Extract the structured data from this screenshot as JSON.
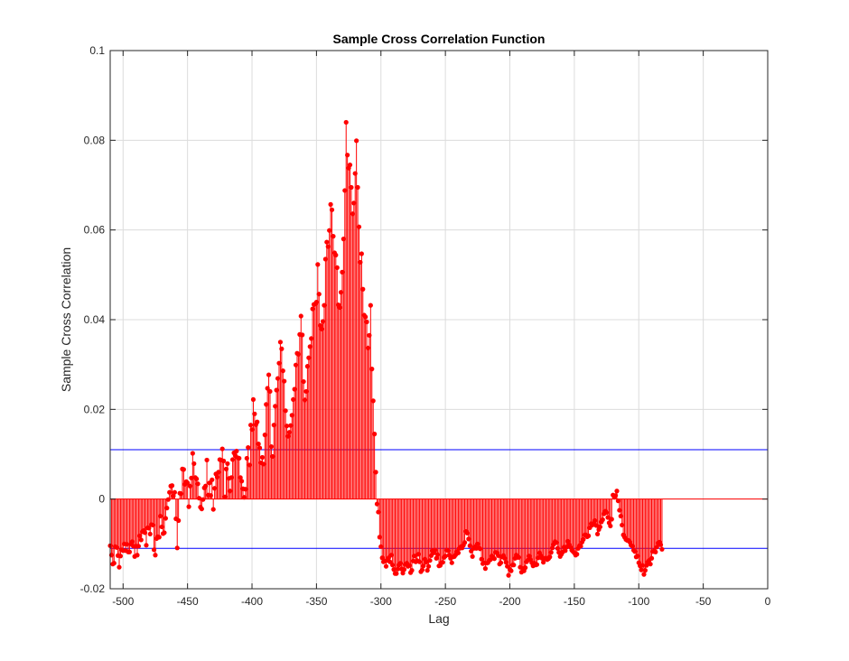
{
  "chart_data": {
    "type": "stem",
    "title": "Sample Cross Correlation Function",
    "xlabel": "Lag",
    "ylabel": "Sample Cross Correlation",
    "xlim": [
      -510,
      0
    ],
    "ylim": [
      -0.02,
      0.1
    ],
    "xticks": [
      -500,
      -450,
      -400,
      -350,
      -300,
      -250,
      -200,
      -150,
      -100,
      -50,
      0
    ],
    "xtick_labels": [
      "-500",
      "-450",
      "-400",
      "-350",
      "-300",
      "-250",
      "-200",
      "-150",
      "-100",
      "-50",
      "0"
    ],
    "yticks": [
      -0.02,
      0,
      0.02,
      0.04,
      0.06,
      0.08,
      0.1
    ],
    "ytick_labels": [
      "-0.02",
      "0",
      "0.02",
      "0.04",
      "0.06",
      "0.08",
      "0.1"
    ],
    "grid": true,
    "confidence_bounds": [
      0.011,
      -0.011
    ],
    "colors": {
      "stem": "#ff0000",
      "bounds": "#0000ff",
      "grid": "#dcdcdc",
      "axis": "#262626"
    },
    "lag_start": -510,
    "values": [
      -0.0104,
      -0.0125,
      -0.0145,
      -0.0143,
      -0.0106,
      -0.0108,
      -0.0126,
      -0.0152,
      -0.0127,
      -0.0113,
      -0.0115,
      -0.01,
      -0.0115,
      -0.0101,
      -0.0118,
      -0.0118,
      -0.0101,
      -0.0095,
      -0.0105,
      -0.0128,
      -0.0105,
      -0.0125,
      -0.0105,
      -0.0082,
      -0.0091,
      -0.0073,
      -0.007,
      -0.0075,
      -0.0103,
      -0.0064,
      -0.0065,
      -0.0078,
      -0.0057,
      -0.0058,
      -0.0113,
      -0.0125,
      -0.0088,
      -0.0084,
      -0.0085,
      -0.0038,
      -0.0062,
      -0.0077,
      -0.0075,
      -0.0043,
      -0.002,
      -0.0001,
      0.0015,
      0.0029,
      0.003,
      0.0007,
      0.0015,
      -0.0044,
      -0.0109,
      -0.0048,
      0.0013,
      0.0012,
      0.0067,
      0.0066,
      0.0033,
      0.0039,
      0.0036,
      -0.0017,
      0.0029,
      0.0047,
      0.0102,
      0.0079,
      0.0048,
      0.0045,
      0.0034,
      0.0002,
      -0.0018,
      -0.0022,
      -0.0001,
      0.0025,
      0.0029,
      0.0087,
      0.0009,
      0.0036,
      0.0008,
      0.0043,
      -0.0023,
      0.0024,
      0.0056,
      0.0049,
      0.006,
      0.0088,
      0.0087,
      0.0112,
      0.0085,
      0.0005,
      0.0067,
      0.0079,
      0.0046,
      0.0018,
      0.0048,
      0.0088,
      0.0103,
      0.0097,
      0.0107,
      0.0092,
      0.0091,
      0.0048,
      0.004,
      0.0023,
      0.0004,
      0.0022,
      0.0091,
      0.0115,
      0.0076,
      0.0165,
      0.0155,
      0.0222,
      0.019,
      0.0166,
      0.0172,
      0.0123,
      0.0114,
      0.0081,
      0.0093,
      0.0078,
      0.0143,
      0.0211,
      0.0247,
      0.0277,
      0.024,
      0.0117,
      0.0095,
      0.0165,
      0.0207,
      0.0243,
      0.0269,
      0.0303,
      0.035,
      0.0335,
      0.0286,
      0.0263,
      0.0197,
      0.0163,
      0.014,
      0.0149,
      0.0164,
      0.0187,
      0.0222,
      0.0245,
      0.0299,
      0.0325,
      0.0323,
      0.0367,
      0.0408,
      0.0366,
      0.0262,
      0.0221,
      0.024,
      0.0296,
      0.0315,
      0.034,
      0.0358,
      0.0424,
      0.0434,
      0.0435,
      0.0439,
      0.0523,
      0.0457,
      0.0387,
      0.0379,
      0.0396,
      0.0432,
      0.0535,
      0.0573,
      0.0563,
      0.0599,
      0.0657,
      0.0645,
      0.0586,
      0.0549,
      0.0544,
      0.0516,
      0.0433,
      0.0427,
      0.0461,
      0.0506,
      0.058,
      0.0688,
      0.084,
      0.0767,
      0.0738,
      0.0745,
      0.0695,
      0.0636,
      0.066,
      0.0726,
      0.0799,
      0.0695,
      0.0607,
      0.0528,
      0.0547,
      0.0468,
      0.041,
      0.0406,
      0.0395,
      0.0337,
      0.0365,
      0.0432,
      0.029,
      0.0219,
      0.0145,
      0.006,
      -0.0011,
      -0.0029,
      -0.0085,
      -0.0106,
      -0.0131,
      -0.014,
      -0.0138,
      -0.015,
      -0.0137,
      -0.0131,
      -0.014,
      -0.0125,
      -0.0147,
      -0.0157,
      -0.0166,
      -0.0166,
      -0.0156,
      -0.0147,
      -0.0143,
      -0.0156,
      -0.0165,
      -0.0157,
      -0.0146,
      -0.0143,
      -0.015,
      -0.0148,
      -0.0164,
      -0.0159,
      -0.0138,
      -0.0127,
      -0.014,
      -0.0137,
      -0.0123,
      -0.014,
      -0.0162,
      -0.0158,
      -0.0149,
      -0.0134,
      -0.0141,
      -0.0159,
      -0.015,
      -0.0137,
      -0.0126,
      -0.0115,
      -0.012,
      -0.0114,
      -0.0132,
      -0.0124,
      -0.0149,
      -0.0148,
      -0.0142,
      -0.0141,
      -0.013,
      -0.0127,
      -0.0114,
      -0.0115,
      -0.0125,
      -0.0132,
      -0.0142,
      -0.0129,
      -0.0128,
      -0.0124,
      -0.0117,
      -0.012,
      -0.011,
      -0.0106,
      -0.0109,
      -0.0103,
      -0.0097,
      -0.0072,
      -0.0076,
      -0.0089,
      -0.0104,
      -0.0116,
      -0.0128,
      -0.011,
      -0.0106,
      -0.011,
      -0.01,
      -0.0109,
      -0.0111,
      -0.0134,
      -0.0144,
      -0.0142,
      -0.0155,
      -0.0143,
      -0.0142,
      -0.0137,
      -0.0135,
      -0.0127,
      -0.0129,
      -0.0133,
      -0.0119,
      -0.012,
      -0.0126,
      -0.0145,
      -0.0142,
      -0.0129,
      -0.0126,
      -0.0132,
      -0.0141,
      -0.015,
      -0.017,
      -0.0157,
      -0.016,
      -0.0147,
      -0.0147,
      -0.0132,
      -0.0125,
      -0.013,
      -0.013,
      -0.0152,
      -0.0163,
      -0.0155,
      -0.016,
      -0.0153,
      -0.014,
      -0.0136,
      -0.0127,
      -0.0135,
      -0.0142,
      -0.0149,
      -0.0143,
      -0.0147,
      -0.0146,
      -0.0131,
      -0.012,
      -0.0126,
      -0.0132,
      -0.0141,
      -0.0132,
      -0.0132,
      -0.0135,
      -0.0133,
      -0.0129,
      -0.0119,
      -0.0109,
      -0.0101,
      -0.0095,
      -0.0097,
      -0.011,
      -0.0119,
      -0.0128,
      -0.0123,
      -0.0118,
      -0.0107,
      -0.0115,
      -0.0107,
      -0.0094,
      -0.0102,
      -0.0107,
      -0.0114,
      -0.0117,
      -0.012,
      -0.0125,
      -0.0123,
      -0.011,
      -0.0104,
      -0.0105,
      -0.0096,
      -0.009,
      -0.008,
      -0.008,
      -0.0084,
      -0.0082,
      -0.0064,
      -0.0055,
      -0.0058,
      -0.0054,
      -0.0048,
      -0.0059,
      -0.0078,
      -0.0068,
      -0.0062,
      -0.0051,
      -0.0046,
      -0.0033,
      -0.0027,
      -0.003,
      -0.0041,
      -0.0053,
      -0.006,
      -0.0045,
      0.0009,
      0.0004,
      0.0008,
      0.0018,
      -0.0004,
      -0.0025,
      -0.0038,
      -0.0058,
      -0.008,
      -0.0085,
      -0.009,
      -0.0092,
      -0.0092,
      -0.0096,
      -0.0103,
      -0.0105,
      -0.0114,
      -0.0117,
      -0.0129,
      -0.0127,
      -0.0142,
      -0.0149,
      -0.0158,
      -0.0148,
      -0.0168,
      -0.0159,
      -0.0148,
      -0.014,
      -0.0137,
      -0.0145,
      -0.0132,
      -0.0117,
      -0.0115,
      -0.0118,
      -0.0107,
      -0.0098,
      -0.0096,
      -0.0102,
      -0.0112
    ]
  }
}
